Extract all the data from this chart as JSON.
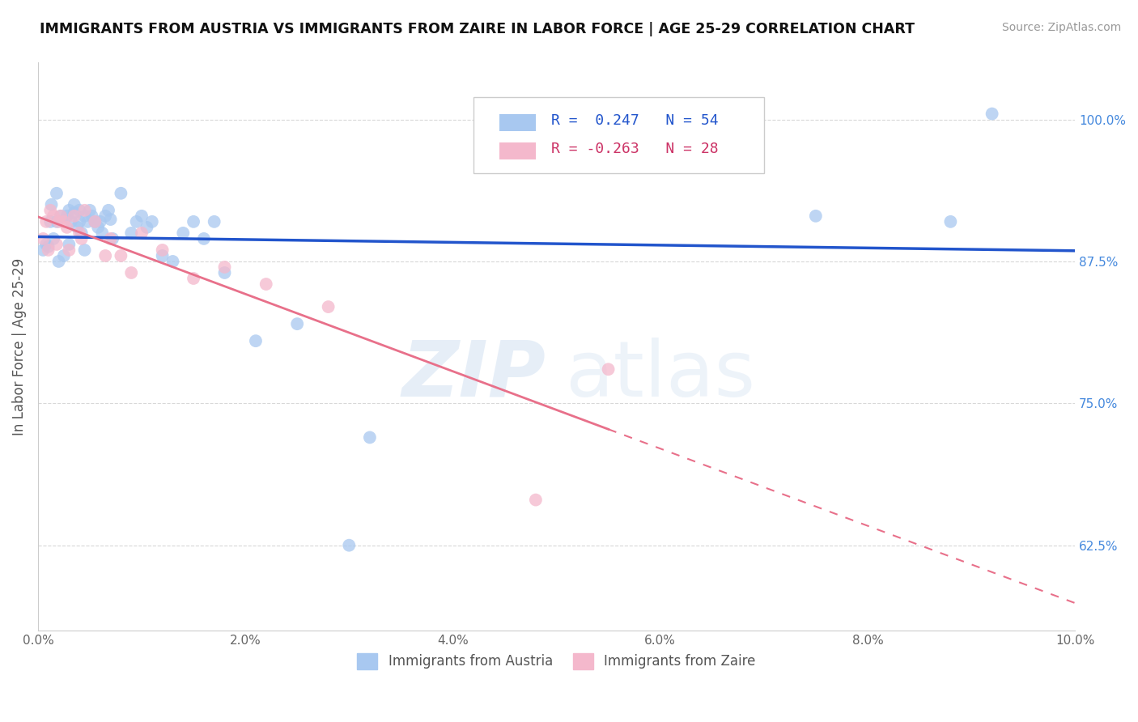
{
  "title": "IMMIGRANTS FROM AUSTRIA VS IMMIGRANTS FROM ZAIRE IN LABOR FORCE | AGE 25-29 CORRELATION CHART",
  "source": "Source: ZipAtlas.com",
  "ylabel": "In Labor Force | Age 25-29",
  "xlabel_legend_austria": "Immigrants from Austria",
  "xlabel_legend_zaire": "Immigrants from Zaire",
  "r_austria": 0.247,
  "n_austria": 54,
  "r_zaire": -0.263,
  "n_zaire": 28,
  "xlim": [
    0.0,
    10.0
  ],
  "ylim": [
    55.0,
    105.0
  ],
  "xticklabels": [
    "0.0%",
    "2.0%",
    "4.0%",
    "6.0%",
    "8.0%",
    "10.0%"
  ],
  "xticks": [
    0.0,
    2.0,
    4.0,
    6.0,
    8.0,
    10.0
  ],
  "right_yticks": [
    62.5,
    75.0,
    87.5,
    100.0
  ],
  "right_yticklabels": [
    "62.5%",
    "75.0%",
    "87.5%",
    "100.0%"
  ],
  "background_color": "#ffffff",
  "grid_color": "#d8d8d8",
  "austria_color": "#a8c8f0",
  "zaire_color": "#f4b8cc",
  "austria_line_color": "#2255cc",
  "zaire_line_color": "#e8708a",
  "austria_x": [
    0.05,
    0.08,
    0.1,
    0.12,
    0.13,
    0.15,
    0.18,
    0.18,
    0.2,
    0.22,
    0.25,
    0.28,
    0.3,
    0.3,
    0.32,
    0.35,
    0.35,
    0.38,
    0.4,
    0.4,
    0.42,
    0.45,
    0.45,
    0.48,
    0.5,
    0.52,
    0.55,
    0.58,
    0.6,
    0.62,
    0.65,
    0.68,
    0.7,
    0.72,
    0.8,
    0.9,
    0.95,
    1.0,
    1.05,
    1.1,
    1.2,
    1.3,
    1.4,
    1.5,
    1.6,
    1.7,
    1.8,
    2.1,
    2.5,
    3.0,
    3.2,
    7.5,
    8.8,
    9.2
  ],
  "austria_y": [
    88.5,
    89.0,
    88.8,
    91.0,
    92.5,
    89.5,
    93.5,
    91.0,
    87.5,
    91.5,
    88.0,
    91.5,
    92.0,
    89.0,
    91.0,
    91.8,
    92.5,
    90.5,
    91.0,
    92.0,
    90.0,
    91.5,
    88.5,
    91.0,
    92.0,
    91.5,
    91.0,
    90.5,
    91.0,
    90.0,
    91.5,
    92.0,
    91.2,
    89.5,
    93.5,
    90.0,
    91.0,
    91.5,
    90.5,
    91.0,
    88.0,
    87.5,
    90.0,
    91.0,
    89.5,
    91.0,
    86.5,
    80.5,
    82.0,
    62.5,
    72.0,
    91.5,
    91.0,
    100.5
  ],
  "zaire_x": [
    0.05,
    0.08,
    0.1,
    0.12,
    0.15,
    0.18,
    0.2,
    0.22,
    0.25,
    0.28,
    0.3,
    0.35,
    0.4,
    0.42,
    0.45,
    0.55,
    0.65,
    0.7,
    0.8,
    0.9,
    1.0,
    1.2,
    1.5,
    1.8,
    2.2,
    2.8,
    4.8,
    5.5
  ],
  "zaire_y": [
    89.5,
    91.0,
    88.5,
    92.0,
    91.5,
    89.0,
    91.0,
    91.5,
    91.0,
    90.5,
    88.5,
    91.5,
    90.0,
    89.5,
    92.0,
    91.0,
    88.0,
    89.5,
    88.0,
    86.5,
    90.0,
    88.5,
    86.0,
    87.0,
    85.5,
    83.5,
    66.5,
    78.0
  ]
}
